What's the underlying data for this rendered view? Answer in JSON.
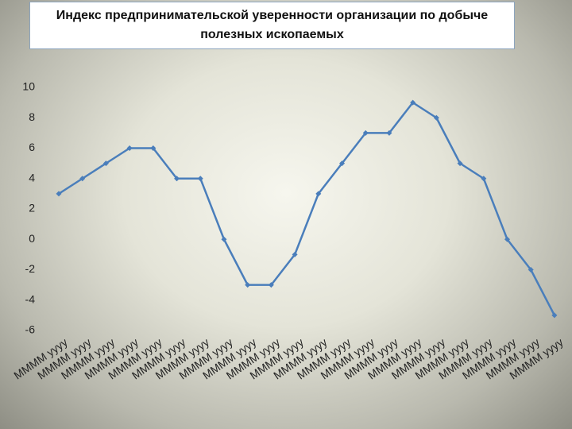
{
  "chart_data": {
    "type": "line",
    "title": "Индекс предпринимательской уверенности организации по добыче полезных ископаемых",
    "categories": [
      "ММММ уууу",
      "ММММ уууу",
      "ММММ уууу",
      "ММММ уууу",
      "ММММ уууу",
      "ММММ уууу",
      "ММММ уууу",
      "ММММ уууу",
      "ММММ уууу",
      "ММММ уууу",
      "ММММ уууу",
      "ММММ уууу",
      "ММММ уууу",
      "ММММ уууу",
      "ММММ уууу",
      "ММММ уууу",
      "ММММ уууу",
      "ММММ уууу",
      "ММММ уууу",
      "ММММ уууу",
      "ММММ уууу",
      "ММММ уууу"
    ],
    "values": [
      3,
      4,
      5,
      6,
      6,
      4,
      4,
      0,
      -3,
      -3,
      -1,
      3,
      5,
      7,
      7,
      9,
      8,
      5,
      4,
      0,
      -2,
      -5
    ],
    "color": "#4a7ebb",
    "ylim": [
      -6,
      10
    ],
    "yticks": [
      -6,
      -4,
      -2,
      0,
      2,
      4,
      6,
      8,
      10
    ],
    "grid": false
  }
}
